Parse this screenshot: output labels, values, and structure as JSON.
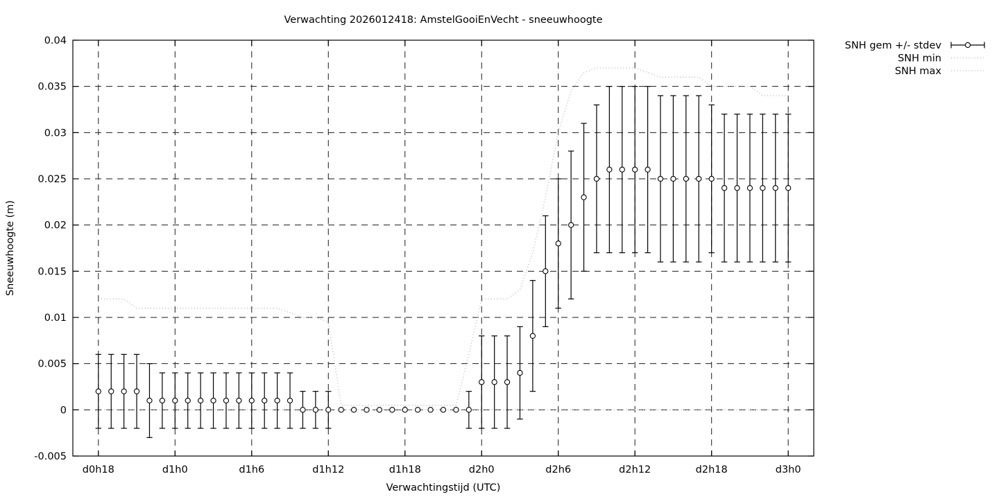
{
  "title": "Verwachting 2026012418: AmstelGooiEnVecht - sneeuwhoogte",
  "chart_data": {
    "type": "line",
    "title": "Verwachting 2026012418: AmstelGooiEnVecht - sneeuwhoogte",
    "xlabel": "Verwachtingstijd (UTC)",
    "ylabel": "Sneeuwhoogte (m)",
    "grid": true,
    "legend_position": "outside-top-right",
    "xlim_hours": [
      16,
      74
    ],
    "ylim": [
      -0.005,
      0.04
    ],
    "x_ticks": {
      "hours": [
        18,
        24,
        30,
        36,
        42,
        48,
        54,
        60,
        66,
        72
      ],
      "labels": [
        "d0h18",
        "d1h0",
        "d1h6",
        "d1h12",
        "d1h18",
        "d2h0",
        "d2h6",
        "d2h12",
        "d2h18",
        "d3h0"
      ]
    },
    "y_ticks": {
      "values": [
        -0.005,
        0,
        0.005,
        0.01,
        0.015,
        0.02,
        0.025,
        0.03,
        0.035,
        0.04
      ],
      "labels": [
        "-0.005",
        "0",
        "0.005",
        "0.01",
        "0.015",
        "0.02",
        "0.025",
        "0.03",
        "0.035",
        "0.04"
      ]
    },
    "hours": [
      18,
      19,
      20,
      21,
      22,
      23,
      24,
      25,
      26,
      27,
      28,
      29,
      30,
      31,
      32,
      33,
      34,
      35,
      36,
      37,
      38,
      39,
      40,
      41,
      42,
      43,
      44,
      45,
      46,
      47,
      48,
      49,
      50,
      51,
      52,
      53,
      54,
      55,
      56,
      57,
      58,
      59,
      60,
      61,
      62,
      63,
      64,
      65,
      66,
      67,
      68,
      69,
      70,
      71,
      72
    ],
    "series": [
      {
        "name": "SNH gem +/- stdev",
        "style": "errorbars",
        "mean": [
          0.002,
          0.002,
          0.002,
          0.002,
          0.001,
          0.001,
          0.001,
          0.001,
          0.001,
          0.001,
          0.001,
          0.001,
          0.001,
          0.001,
          0.001,
          0.001,
          0,
          0,
          0,
          0,
          0,
          0,
          0,
          0,
          0,
          0,
          0,
          0,
          0,
          0,
          0.003,
          0.003,
          0.003,
          0.004,
          0.008,
          0.015,
          0.018,
          0.02,
          0.023,
          0.025,
          0.026,
          0.026,
          0.026,
          0.026,
          0.025,
          0.025,
          0.025,
          0.025,
          0.025,
          0.024,
          0.024,
          0.024,
          0.024,
          0.024,
          0.024
        ],
        "stdev": [
          0.004,
          0.004,
          0.004,
          0.004,
          0.004,
          0.003,
          0.003,
          0.003,
          0.003,
          0.003,
          0.003,
          0.003,
          0.003,
          0.003,
          0.003,
          0.003,
          0.002,
          0.002,
          0.002,
          0,
          0,
          0,
          0,
          0,
          0,
          0,
          0,
          0,
          0,
          0.002,
          0.005,
          0.005,
          0.005,
          0.005,
          0.006,
          0.006,
          0.007,
          0.008,
          0.008,
          0.008,
          0.009,
          0.009,
          0.009,
          0.009,
          0.009,
          0.009,
          0.009,
          0.009,
          0.008,
          0.008,
          0.008,
          0.008,
          0.008,
          0.008,
          0.008
        ]
      },
      {
        "name": "SNH min",
        "style": "dotted",
        "values": [
          0,
          0,
          0,
          0,
          0,
          0,
          0,
          0,
          0,
          0,
          0,
          0,
          0,
          0,
          0,
          0,
          0,
          0,
          0,
          0,
          0,
          0,
          0,
          0,
          0,
          0,
          0,
          0,
          0,
          0,
          0,
          0,
          0,
          0,
          0,
          0,
          0,
          0,
          0,
          0,
          0,
          0,
          0,
          0,
          0,
          0,
          0,
          0,
          0,
          0,
          0,
          0,
          0,
          0,
          0
        ]
      },
      {
        "name": "SNH max",
        "style": "dotted",
        "values": [
          0.012,
          0.012,
          0.012,
          0.011,
          0.011,
          0.011,
          0.011,
          0.011,
          0.011,
          0.011,
          0.011,
          0.011,
          0.011,
          0.011,
          0.011,
          0.0105,
          0.01,
          0.01,
          0.0095,
          0.0005,
          0.0005,
          0.0005,
          0.0005,
          0.0005,
          0.0005,
          0.0005,
          0.0005,
          0.0005,
          0.0005,
          0.006,
          0.012,
          0.012,
          0.012,
          0.013,
          0.017,
          0.023,
          0.03,
          0.0345,
          0.0365,
          0.037,
          0.037,
          0.037,
          0.037,
          0.0365,
          0.036,
          0.036,
          0.036,
          0.036,
          0.035,
          0.035,
          0.035,
          0.035,
          0.034,
          0.034,
          0.034
        ]
      }
    ],
    "colors": {
      "background": "#ffffff",
      "data": "#000000",
      "grid": "#1a1a1a",
      "minmax_dotted": "#b3b3b3"
    }
  }
}
